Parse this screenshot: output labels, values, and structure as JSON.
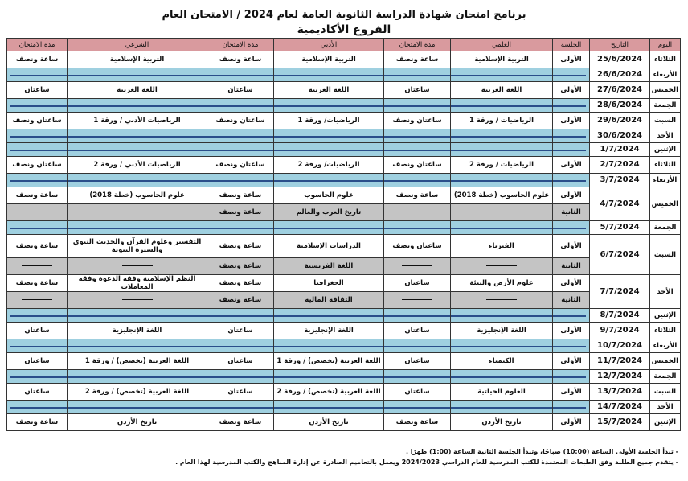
{
  "title": "برنامج امتحان شهادة الدراسة الثانوية العامة  لعام 2024 / الامتحان العام",
  "subtitle": "الفروع الأكاديمية",
  "colors": {
    "header": "#d99a9e",
    "blank_row": "#9fd0e0",
    "second_session": "#c4c4c4",
    "line": "#2a4e8a"
  },
  "headers": [
    "اليوم",
    "التاريخ",
    "الجلسة",
    "العلمي",
    "مدة الامتحان",
    "الأدبي",
    "مدة الامتحان",
    "الشرعي",
    "مدة الامتحان"
  ],
  "rows": [
    {
      "day": "الثلاثاء",
      "date": "25/6/2024",
      "sessions": [
        [
          "الأولى",
          "التربية الإسلامية",
          "ساعة ونصف",
          "التربية الإسلامية",
          "ساعة ونصف",
          "التربية الإسلامية",
          "ساعة ونصف"
        ]
      ]
    },
    {
      "day": "الأربعاء",
      "date": "26/6/2024",
      "blank": true
    },
    {
      "day": "الخميس",
      "date": "27/6/2024",
      "sessions": [
        [
          "الأولى",
          "اللغة العربية",
          "ساعتان",
          "اللغة العربية",
          "ساعتان",
          "اللغة العربية",
          "ساعتان"
        ]
      ]
    },
    {
      "day": "الجمعة",
      "date": "28/6/2024",
      "blank": true
    },
    {
      "day": "السبت",
      "date": "29/6/2024",
      "sessions": [
        [
          "الأولى",
          "الرياضيات / ورقة 1",
          "ساعتان ونصف",
          "الرياضيات/ ورقة 1",
          "ساعتان ونصف",
          "الرياضيات الأدبي / ورقة 1",
          "ساعتان ونصف"
        ]
      ]
    },
    {
      "day": "الأحد",
      "date": "30/6/2024",
      "blank": true
    },
    {
      "day": "الإثنين",
      "date": "1/7/2024",
      "blank": true
    },
    {
      "day": "الثلاثاء",
      "date": "2/7/2024",
      "sessions": [
        [
          "الأولى",
          "الرياضيات / ورقة 2",
          "ساعتان ونصف",
          "الرياضيات/ ورقة 2",
          "ساعتان ونصف",
          "الرياضيات الأدبي / ورقة 2",
          "ساعتان ونصف"
        ]
      ]
    },
    {
      "day": "الأربعاء",
      "date": "3/7/2024",
      "blank": true
    },
    {
      "day": "الخميس",
      "date": "4/7/2024",
      "sessions": [
        [
          "الأولى",
          "علوم الحاسوب (خطة 2018)",
          "ساعة ونصف",
          "علوم الحاسوب",
          "ساعة ونصف",
          "علوم الحاسوب (خطة 2018)",
          "ساعة ونصف"
        ],
        [
          "الثانية",
          "—",
          "—",
          "تاريخ العرب والعالم",
          "ساعة ونصف",
          "—",
          "—"
        ]
      ]
    },
    {
      "day": "الجمعة",
      "date": "5/7/2024",
      "blank": true
    },
    {
      "day": "السبت",
      "date": "6/7/2024",
      "sessions": [
        [
          "الأولى",
          "الفيزياء",
          "ساعتان ونصف",
          "الدراسات الإسلامية",
          "ساعة ونصف",
          "التفسير وعلوم القرآن والحديث النبوي والسيرة النبوية",
          "ساعة ونصف"
        ],
        [
          "الثانية",
          "—",
          "—",
          "اللغة الفرنسية",
          "ساعة ونصف",
          "—",
          "—"
        ]
      ]
    },
    {
      "day": "الأحد",
      "date": "7/7/2024",
      "sessions": [
        [
          "الأولى",
          "علوم الأرض والبيئة",
          "ساعتان",
          "الجغرافيا",
          "ساعة ونصف",
          "النظم الإسلامية وفقه الدعوة وفقه المعاملات",
          "ساعة ونصف"
        ],
        [
          "الثانية",
          "—",
          "—",
          "الثقافة المالية",
          "ساعة ونصف",
          "—",
          "—"
        ]
      ]
    },
    {
      "day": "الإثنين",
      "date": "8/7/2024",
      "blank": true
    },
    {
      "day": "الثلاثاء",
      "date": "9/7/2024",
      "sessions": [
        [
          "الأولى",
          "اللغة الإنجليزية",
          "ساعتان",
          "اللغة الإنجليزية",
          "ساعتان",
          "اللغة الإنجليزية",
          "ساعتان"
        ]
      ]
    },
    {
      "day": "الأربعاء",
      "date": "10/7/2024",
      "blank": true
    },
    {
      "day": "الخميس",
      "date": "11/7/2024",
      "sessions": [
        [
          "الأولى",
          "الكيمياء",
          "ساعتان",
          "اللغة العربية (تخصص) / ورقة 1",
          "ساعتان",
          "اللغة العربية (تخصص) / ورقة 1",
          "ساعتان"
        ]
      ]
    },
    {
      "day": "الجمعة",
      "date": "12/7/2024",
      "blank": true
    },
    {
      "day": "السبت",
      "date": "13/7/2024",
      "sessions": [
        [
          "الأولى",
          "العلوم الحياتية",
          "ساعتان",
          "اللغة العربية (تخصص) / ورقة 2",
          "ساعتان",
          "اللغة العربية (تخصص) / ورقة 2",
          "ساعتان"
        ]
      ]
    },
    {
      "day": "الأحد",
      "date": "14/7/2024",
      "blank": true
    },
    {
      "day": "الإثنين",
      "date": "15/7/2024",
      "sessions": [
        [
          "الأولى",
          "تاريخ الأردن",
          "ساعة ونصف",
          "تاريخ الأردن",
          "ساعة ونصف",
          "تاريخ الأردن",
          "ساعة ونصف"
        ]
      ]
    }
  ],
  "notes": [
    "- تبدأ الجلسة الأولى الساعة (10:00) صباحًا، وتبدأ الجلسة الثانية الساعة  (1:00) ظهرًا .",
    "- يتقدم جميع الطلبة وفق الطبعات المعتمدة للكتب المدرسية للعام الدراسي 2024/2023  ويعمل بالتعاميم الصادرة عن إدارة المناهج والكتب المدرسية لهذا العام ."
  ]
}
